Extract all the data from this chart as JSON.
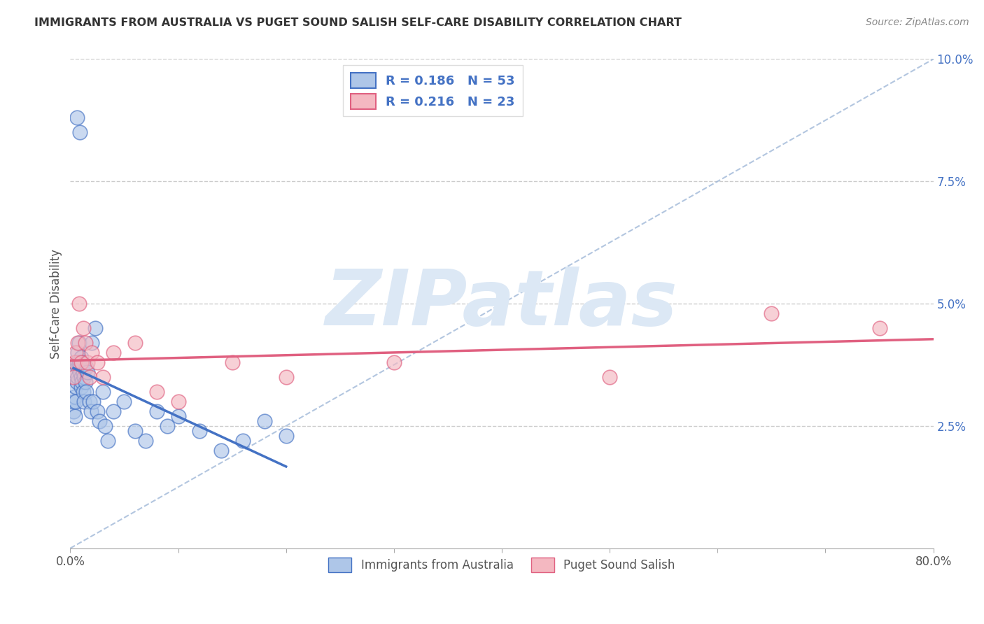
{
  "title": "IMMIGRANTS FROM AUSTRALIA VS PUGET SOUND SALISH SELF-CARE DISABILITY CORRELATION CHART",
  "source": "Source: ZipAtlas.com",
  "ylabel": "Self-Care Disability",
  "xlim": [
    0.0,
    0.8
  ],
  "ylim": [
    0.0,
    0.1
  ],
  "yticks_right": [
    0.025,
    0.05,
    0.075,
    0.1
  ],
  "ytick_right_labels": [
    "2.5%",
    "5.0%",
    "7.5%",
    "10.0%"
  ],
  "grid_color": "#cccccc",
  "background_color": "#ffffff",
  "series1_color": "#aec6e8",
  "series2_color": "#f4b8c1",
  "series1_edge_color": "#4472c4",
  "series2_edge_color": "#e06080",
  "series1_label": "Immigrants from Australia",
  "series2_label": "Puget Sound Salish",
  "series1_R": "0.186",
  "series1_N": "53",
  "series2_R": "0.216",
  "series2_N": "23",
  "trend1_color": "#4472c4",
  "trend2_color": "#e06080",
  "diag_color": "#a0b8d8",
  "watermark_color": "#dce8f5",
  "series1_x": [
    0.006,
    0.009,
    0.003,
    0.003,
    0.004,
    0.004,
    0.005,
    0.005,
    0.005,
    0.006,
    0.006,
    0.007,
    0.007,
    0.007,
    0.008,
    0.008,
    0.009,
    0.009,
    0.01,
    0.01,
    0.01,
    0.011,
    0.011,
    0.012,
    0.012,
    0.013,
    0.013,
    0.014,
    0.015,
    0.015,
    0.016,
    0.018,
    0.019,
    0.02,
    0.021,
    0.023,
    0.025,
    0.027,
    0.03,
    0.032,
    0.035,
    0.04,
    0.05,
    0.06,
    0.07,
    0.08,
    0.09,
    0.1,
    0.12,
    0.14,
    0.16,
    0.18,
    0.2
  ],
  "series1_y": [
    0.088,
    0.085,
    0.028,
    0.03,
    0.027,
    0.031,
    0.033,
    0.036,
    0.03,
    0.038,
    0.034,
    0.04,
    0.037,
    0.035,
    0.042,
    0.038,
    0.037,
    0.036,
    0.039,
    0.035,
    0.033,
    0.038,
    0.034,
    0.036,
    0.032,
    0.035,
    0.03,
    0.034,
    0.037,
    0.032,
    0.036,
    0.03,
    0.028,
    0.042,
    0.03,
    0.045,
    0.028,
    0.026,
    0.032,
    0.025,
    0.022,
    0.028,
    0.03,
    0.024,
    0.022,
    0.028,
    0.025,
    0.027,
    0.024,
    0.02,
    0.022,
    0.026,
    0.023
  ],
  "series2_x": [
    0.003,
    0.004,
    0.005,
    0.007,
    0.008,
    0.01,
    0.012,
    0.014,
    0.016,
    0.018,
    0.02,
    0.025,
    0.03,
    0.04,
    0.06,
    0.08,
    0.1,
    0.15,
    0.2,
    0.3,
    0.5,
    0.65,
    0.75
  ],
  "series2_y": [
    0.035,
    0.038,
    0.04,
    0.042,
    0.05,
    0.038,
    0.045,
    0.042,
    0.038,
    0.035,
    0.04,
    0.038,
    0.035,
    0.04,
    0.042,
    0.032,
    0.03,
    0.038,
    0.035,
    0.038,
    0.035,
    0.048,
    0.045
  ]
}
